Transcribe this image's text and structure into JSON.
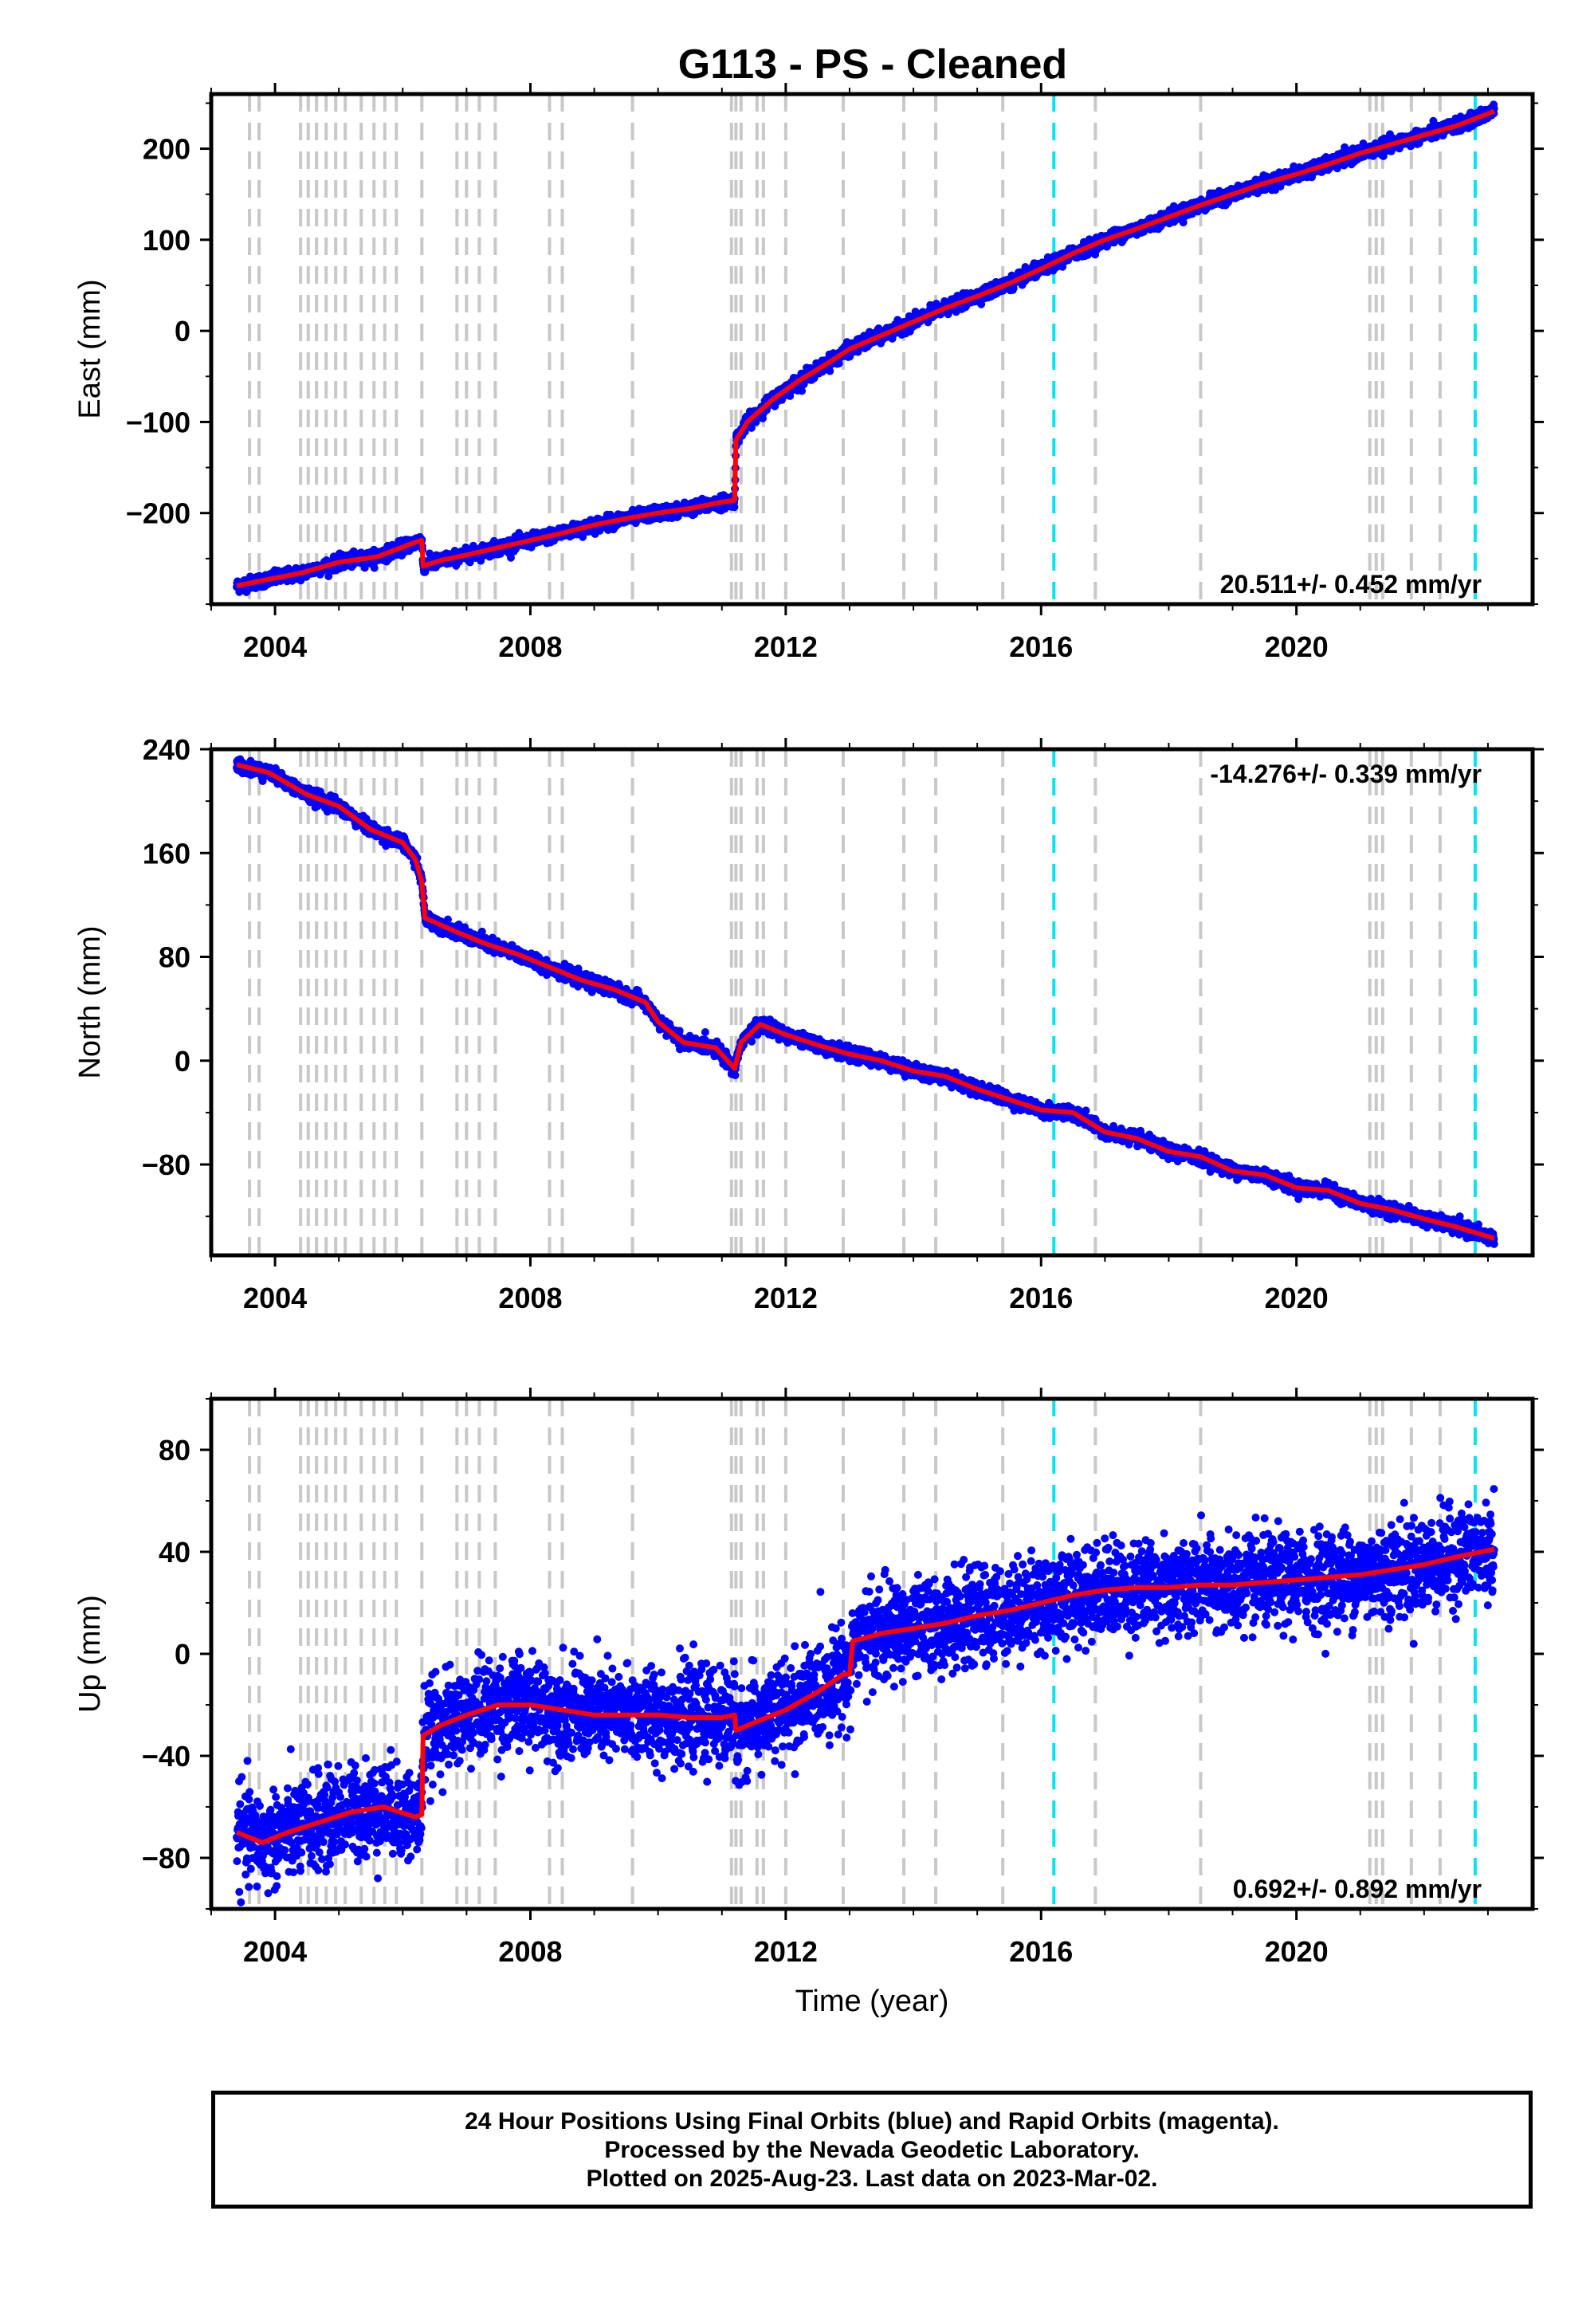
{
  "title": "G113  - PS - Cleaned",
  "colors": {
    "final_orbits": "#0000ff",
    "model": "#ff0000",
    "equipment_change": "#c8c8c8",
    "earthquake_event": "#00e5ee",
    "frame": "#000000"
  },
  "chart_data": [
    {
      "type": "scatter",
      "name": "east",
      "ylabel": "East (mm)",
      "xlabel": "",
      "xlim": [
        2003.0,
        2023.7
      ],
      "ylim": [
        -300,
        260
      ],
      "yticks": [
        -200,
        -100,
        0,
        100,
        200
      ],
      "ytick_labels": [
        "−200",
        "−100",
        "0",
        "100",
        "200"
      ],
      "xticks": [
        2004,
        2008,
        2012,
        2016,
        2020
      ],
      "xtick_labels": [
        "2004",
        "2008",
        "2012",
        "2016",
        "2020"
      ],
      "rate_text": "20.511+/- 0.452 mm/yr",
      "rate_position": "bottom-right",
      "noise_mm": 3.5,
      "trend": [
        [
          2003.4,
          -280
        ],
        [
          2003.8,
          -274
        ],
        [
          2004.4,
          -266
        ],
        [
          2005.0,
          -254
        ],
        [
          2005.6,
          -248
        ],
        [
          2006.2,
          -232
        ],
        [
          2006.3,
          -230
        ],
        [
          2006.32,
          -258
        ],
        [
          2006.6,
          -252
        ],
        [
          2007.0,
          -246
        ],
        [
          2007.5,
          -238
        ],
        [
          2008.0,
          -230
        ],
        [
          2008.5,
          -222
        ],
        [
          2009.0,
          -213
        ],
        [
          2009.5,
          -206
        ],
        [
          2010.0,
          -200
        ],
        [
          2010.5,
          -195
        ],
        [
          2011.0,
          -188
        ],
        [
          2011.2,
          -186
        ],
        [
          2011.22,
          -120
        ],
        [
          2011.4,
          -100
        ],
        [
          2011.8,
          -75
        ],
        [
          2012.2,
          -55
        ],
        [
          2012.6,
          -38
        ],
        [
          2013.0,
          -20
        ],
        [
          2013.5,
          -5
        ],
        [
          2014.0,
          10
        ],
        [
          2014.5,
          25
        ],
        [
          2015.0,
          38
        ],
        [
          2015.5,
          52
        ],
        [
          2016.0,
          68
        ],
        [
          2016.5,
          85
        ],
        [
          2017.0,
          100
        ],
        [
          2017.5,
          112
        ],
        [
          2018.0,
          125
        ],
        [
          2018.5,
          138
        ],
        [
          2019.0,
          150
        ],
        [
          2019.5,
          162
        ],
        [
          2020.0,
          172
        ],
        [
          2020.5,
          183
        ],
        [
          2021.0,
          195
        ],
        [
          2021.5,
          205
        ],
        [
          2022.0,
          215
        ],
        [
          2022.5,
          225
        ],
        [
          2023.1,
          241
        ]
      ]
    },
    {
      "type": "scatter",
      "name": "north",
      "ylabel": "North (mm)",
      "xlabel": "",
      "xlim": [
        2003.0,
        2023.7
      ],
      "ylim": [
        -150,
        240
      ],
      "yticks": [
        -80,
        0,
        80,
        160,
        240
      ],
      "ytick_labels": [
        "−80",
        "0",
        "80",
        "160",
        "240"
      ],
      "xticks": [
        2004,
        2008,
        2012,
        2016,
        2020
      ],
      "xtick_labels": [
        "2004",
        "2008",
        "2012",
        "2016",
        "2020"
      ],
      "rate_text": "-14.276+/- 0.339 mm/yr",
      "rate_position": "top-right",
      "noise_mm": 2.5,
      "trend": [
        [
          2003.4,
          228
        ],
        [
          2003.9,
          222
        ],
        [
          2004.5,
          205
        ],
        [
          2005.0,
          196
        ],
        [
          2005.5,
          178
        ],
        [
          2006.0,
          168
        ],
        [
          2006.2,
          155
        ],
        [
          2006.3,
          138
        ],
        [
          2006.35,
          110
        ],
        [
          2006.8,
          100
        ],
        [
          2007.3,
          90
        ],
        [
          2007.8,
          82
        ],
        [
          2008.3,
          72
        ],
        [
          2008.8,
          62
        ],
        [
          2009.3,
          55
        ],
        [
          2009.8,
          45
        ],
        [
          2010.0,
          30
        ],
        [
          2010.4,
          14
        ],
        [
          2010.9,
          10
        ],
        [
          2011.2,
          -6
        ],
        [
          2011.3,
          14
        ],
        [
          2011.6,
          28
        ],
        [
          2012.0,
          20
        ],
        [
          2012.5,
          12
        ],
        [
          2013.0,
          5
        ],
        [
          2013.5,
          0
        ],
        [
          2014.0,
          -8
        ],
        [
          2014.5,
          -12
        ],
        [
          2015.0,
          -22
        ],
        [
          2015.5,
          -30
        ],
        [
          2016.0,
          -38
        ],
        [
          2016.5,
          -40
        ],
        [
          2017.0,
          -55
        ],
        [
          2017.5,
          -60
        ],
        [
          2018.0,
          -70
        ],
        [
          2018.5,
          -74
        ],
        [
          2019.0,
          -85
        ],
        [
          2019.5,
          -88
        ],
        [
          2020.0,
          -98
        ],
        [
          2020.5,
          -100
        ],
        [
          2021.0,
          -110
        ],
        [
          2021.5,
          -115
        ],
        [
          2022.0,
          -122
        ],
        [
          2022.5,
          -128
        ],
        [
          2023.1,
          -137
        ]
      ]
    },
    {
      "type": "scatter",
      "name": "up",
      "ylabel": "Up (mm)",
      "xlabel": "Time (year)",
      "xlim": [
        2003.0,
        2023.7
      ],
      "ylim": [
        -100,
        100
      ],
      "yticks": [
        -80,
        -40,
        0,
        40,
        80
      ],
      "ytick_labels": [
        "−80",
        "−40",
        "0",
        "40",
        "80"
      ],
      "xticks": [
        2004,
        2008,
        2012,
        2016,
        2020
      ],
      "xtick_labels": [
        "2004",
        "2008",
        "2012",
        "2016",
        "2020"
      ],
      "rate_text": "0.692+/- 0.892 mm/yr",
      "rate_position": "bottom-right",
      "noise_mm": 9,
      "trend": [
        [
          2003.4,
          -70
        ],
        [
          2003.8,
          -74
        ],
        [
          2004.2,
          -70
        ],
        [
          2004.7,
          -66
        ],
        [
          2005.2,
          -62
        ],
        [
          2005.7,
          -60
        ],
        [
          2006.2,
          -64
        ],
        [
          2006.3,
          -63
        ],
        [
          2006.32,
          -32
        ],
        [
          2006.6,
          -28
        ],
        [
          2007.0,
          -24
        ],
        [
          2007.5,
          -20
        ],
        [
          2008.0,
          -20
        ],
        [
          2008.5,
          -22
        ],
        [
          2009.0,
          -24
        ],
        [
          2009.5,
          -24
        ],
        [
          2010.0,
          -24
        ],
        [
          2010.5,
          -25
        ],
        [
          2011.0,
          -25
        ],
        [
          2011.2,
          -24
        ],
        [
          2011.22,
          -30
        ],
        [
          2011.6,
          -26
        ],
        [
          2012.0,
          -22
        ],
        [
          2012.5,
          -15
        ],
        [
          2012.9,
          -8
        ],
        [
          2013.0,
          -8
        ],
        [
          2013.05,
          5
        ],
        [
          2013.5,
          8
        ],
        [
          2014.0,
          10
        ],
        [
          2014.5,
          12
        ],
        [
          2015.0,
          15
        ],
        [
          2015.5,
          17
        ],
        [
          2016.0,
          20
        ],
        [
          2016.5,
          23
        ],
        [
          2017.0,
          25
        ],
        [
          2017.5,
          26
        ],
        [
          2018.0,
          26
        ],
        [
          2018.5,
          27
        ],
        [
          2019.0,
          27
        ],
        [
          2019.5,
          28
        ],
        [
          2020.0,
          29
        ],
        [
          2020.5,
          30
        ],
        [
          2021.0,
          31
        ],
        [
          2021.5,
          33
        ],
        [
          2022.0,
          35
        ],
        [
          2022.5,
          38
        ],
        [
          2023.1,
          41
        ]
      ]
    }
  ],
  "equipment_changes": [
    2003.6,
    2003.75,
    2004.4,
    2004.52,
    2004.65,
    2004.8,
    2004.95,
    2005.1,
    2005.35,
    2005.55,
    2005.72,
    2005.9,
    2006.3,
    2006.85,
    2007.0,
    2007.2,
    2007.45,
    2008.3,
    2008.5,
    2009.6,
    2011.15,
    2011.22,
    2011.3,
    2011.55,
    2011.65,
    2012.0,
    2012.9,
    2013.85,
    2014.35,
    2015.4,
    2016.85,
    2018.5,
    2021.15,
    2021.25,
    2021.35,
    2021.8,
    2022.25
  ],
  "earthquake_events": [
    2016.2,
    2022.8
  ],
  "footer": {
    "line1": "24 Hour Positions Using Final Orbits (blue) and Rapid Orbits (magenta).",
    "line2": "Processed by the Nevada Geodetic Laboratory.",
    "line3": "Plotted on 2025-Aug-23. Last data on 2023-Mar-02."
  }
}
